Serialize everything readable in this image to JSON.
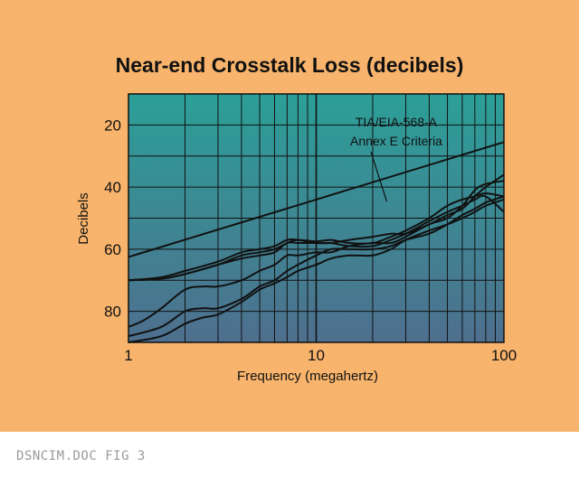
{
  "chart_data": {
    "type": "line",
    "title": "Near-end Crosstalk Loss (decibels)",
    "xlabel": "Frequency (megahertz)",
    "ylabel": "Decibels",
    "x_scale": "log",
    "xlim": [
      1,
      100
    ],
    "ylim": [
      90,
      10
    ],
    "y_inverted": true,
    "x_ticks": [
      "1",
      "10",
      "100"
    ],
    "y_ticks": [
      "20",
      "40",
      "60",
      "80"
    ],
    "grid": true,
    "colors": {
      "background": "#f8b46c",
      "plot_top": "#2c9f98",
      "plot_bottom": "#4e6f8e",
      "lines": "#111111"
    },
    "annotation": {
      "lines": [
        "TIA/EIA-568-A",
        "Annex E Criteria"
      ],
      "points_to_x": 10,
      "points_to_y": 47
    },
    "series": [
      {
        "x": [
          1,
          100
        ],
        "y": [
          62.5,
          25.5
        ]
      },
      {
        "x": [
          1,
          1.5,
          2,
          3,
          4,
          5,
          6,
          7,
          8,
          10,
          12,
          15,
          20,
          25,
          30,
          40,
          50,
          60,
          70,
          80,
          100
        ],
        "y": [
          70,
          69.5,
          68,
          65,
          62,
          61,
          60,
          58,
          57,
          57.5,
          57,
          58,
          58,
          56,
          54,
          50,
          46,
          44,
          43,
          42,
          43
        ]
      },
      {
        "x": [
          1,
          1.5,
          2,
          3,
          4,
          5,
          6,
          7,
          8,
          10,
          12,
          15,
          20,
          25,
          30,
          40,
          50,
          60,
          70,
          80,
          100
        ],
        "y": [
          70,
          69,
          67,
          64,
          61,
          60,
          59,
          57,
          57,
          58,
          58,
          59,
          59,
          57,
          55,
          51,
          48,
          46,
          44,
          43,
          48
        ]
      },
      {
        "x": [
          1,
          1.5,
          2,
          3,
          4,
          5,
          6,
          7,
          8,
          10,
          12,
          15,
          20,
          25,
          30,
          40,
          50,
          60,
          70,
          80,
          100
        ],
        "y": [
          70,
          69.5,
          68,
          65,
          63,
          62,
          61,
          58,
          58,
          58,
          58,
          57,
          56,
          55,
          55,
          52,
          49,
          47,
          43,
          40,
          36
        ]
      },
      {
        "x": [
          1,
          1.2,
          1.5,
          2,
          2.5,
          3,
          4,
          5,
          6,
          7,
          8,
          10,
          12,
          15,
          20,
          25,
          30,
          40,
          50,
          60,
          70,
          80,
          100
        ],
        "y": [
          85,
          83,
          79,
          73,
          72,
          72,
          70,
          67,
          65,
          62,
          62,
          61,
          61,
          59,
          58,
          58,
          56,
          52,
          50,
          46,
          41,
          39,
          38
        ]
      },
      {
        "x": [
          1,
          1.5,
          2,
          2.5,
          3,
          4,
          5,
          6,
          7,
          8,
          10,
          12,
          15,
          20,
          25,
          30,
          40,
          50,
          60,
          70,
          80,
          100
        ],
        "y": [
          88,
          85,
          80,
          79,
          79,
          76,
          72,
          70,
          67,
          65,
          62,
          60,
          60,
          60,
          59,
          57,
          55,
          52,
          49,
          47,
          45,
          43
        ]
      },
      {
        "x": [
          1,
          1.5,
          2,
          2.5,
          3,
          4,
          5,
          6,
          7,
          8,
          10,
          12,
          15,
          20,
          25,
          30,
          40,
          50,
          60,
          70,
          80,
          100
        ],
        "y": [
          90,
          88,
          84,
          82,
          81,
          77,
          73,
          71,
          69,
          67,
          65,
          63,
          62,
          62,
          60,
          57,
          54,
          52,
          50,
          48,
          46,
          44
        ]
      }
    ]
  },
  "caption": "DSNCIM.DOC FIG 3"
}
